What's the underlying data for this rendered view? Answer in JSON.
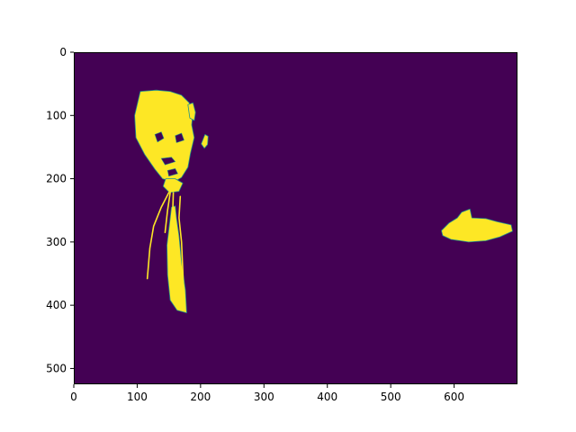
{
  "chart_data": {
    "type": "heatmap",
    "title": "",
    "xlabel": "",
    "ylabel": "",
    "xlim": [
      0,
      700
    ],
    "ylim": [
      525,
      0
    ],
    "x_ticks": [
      "0",
      "100",
      "200",
      "300",
      "400",
      "500",
      "600"
    ],
    "y_ticks": [
      "0",
      "100",
      "200",
      "300",
      "400",
      "500"
    ],
    "grid": false,
    "legend": "none",
    "value_range": [
      0,
      1
    ],
    "colormap": "viridis",
    "colors": {
      "background_value_0": "#440154",
      "foreground_value_1": "#fde725",
      "edge_value_mid": "#21918c"
    },
    "regions": [
      {
        "name": "head",
        "value": 1,
        "outline": [
          [
            105,
            62
          ],
          [
            130,
            60
          ],
          [
            152,
            62
          ],
          [
            170,
            68
          ],
          [
            182,
            80
          ],
          [
            188,
            95
          ],
          [
            186,
            115
          ],
          [
            190,
            135
          ],
          [
            184,
            160
          ],
          [
            180,
            182
          ],
          [
            170,
            198
          ],
          [
            158,
            205
          ],
          [
            140,
            200
          ],
          [
            128,
            185
          ],
          [
            112,
            162
          ],
          [
            98,
            135
          ],
          [
            96,
            100
          ]
        ]
      },
      {
        "name": "hair-right-fragment",
        "value": 1,
        "outline": [
          [
            180,
            83
          ],
          [
            188,
            80
          ],
          [
            192,
            95
          ],
          [
            190,
            108
          ],
          [
            183,
            104
          ]
        ]
      },
      {
        "name": "ear-fragment",
        "value": 1,
        "outline": [
          [
            207,
            130
          ],
          [
            212,
            133
          ],
          [
            211,
            146
          ],
          [
            206,
            152
          ],
          [
            201,
            145
          ]
        ]
      },
      {
        "name": "neck-knot",
        "value": 1,
        "outline": [
          [
            145,
            200
          ],
          [
            160,
            200
          ],
          [
            172,
            207
          ],
          [
            166,
            220
          ],
          [
            151,
            222
          ],
          [
            141,
            212
          ]
        ]
      },
      {
        "name": "tie",
        "value": 1,
        "outline": [
          [
            154,
            245
          ],
          [
            160,
            243
          ],
          [
            162,
            262
          ],
          [
            166,
            290
          ],
          [
            170,
            332
          ],
          [
            176,
            376
          ],
          [
            178,
            412
          ],
          [
            163,
            408
          ],
          [
            152,
            392
          ],
          [
            148,
            352
          ],
          [
            147,
            305
          ],
          [
            151,
            272
          ]
        ]
      },
      {
        "name": "hand",
        "value": 1,
        "outline": [
          [
            580,
            282
          ],
          [
            592,
            270
          ],
          [
            605,
            262
          ],
          [
            612,
            253
          ],
          [
            625,
            248
          ],
          [
            628,
            262
          ],
          [
            650,
            263
          ],
          [
            668,
            268
          ],
          [
            690,
            273
          ],
          [
            692,
            283
          ],
          [
            672,
            292
          ],
          [
            650,
            298
          ],
          [
            623,
            300
          ],
          [
            595,
            296
          ],
          [
            582,
            290
          ]
        ]
      }
    ],
    "strokes": [
      {
        "name": "collar-left-line",
        "value": 1,
        "points": [
          [
            150,
            222
          ],
          [
            138,
            245
          ],
          [
            126,
            275
          ],
          [
            120,
            310
          ],
          [
            116,
            358
          ]
        ]
      },
      {
        "name": "collar-right-line",
        "value": 1,
        "points": [
          [
            168,
            228
          ],
          [
            166,
            262
          ],
          [
            170,
            300
          ],
          [
            172,
            345
          ],
          [
            174,
            402
          ]
        ]
      },
      {
        "name": "tie-left-edge",
        "value": 1,
        "points": [
          [
            152,
            222
          ],
          [
            148,
            250
          ],
          [
            144,
            285
          ]
        ]
      },
      {
        "name": "shirt-center-line",
        "value": 1,
        "points": [
          [
            157,
            222
          ],
          [
            156,
            252
          ],
          [
            158,
            285
          ],
          [
            160,
            325
          ]
        ]
      }
    ],
    "holes": [
      {
        "name": "eye-left",
        "value": 0,
        "outline": [
          [
            128,
            130
          ],
          [
            138,
            126
          ],
          [
            142,
            136
          ],
          [
            132,
            142
          ]
        ]
      },
      {
        "name": "eye-right",
        "value": 0,
        "outline": [
          [
            160,
            132
          ],
          [
            170,
            128
          ],
          [
            174,
            139
          ],
          [
            162,
            143
          ]
        ]
      },
      {
        "name": "mouth",
        "value": 0,
        "outline": [
          [
            138,
            168
          ],
          [
            154,
            166
          ],
          [
            160,
            173
          ],
          [
            144,
            178
          ]
        ]
      },
      {
        "name": "chin-shadow",
        "value": 0,
        "outline": [
          [
            148,
            187
          ],
          [
            160,
            184
          ],
          [
            164,
            192
          ],
          [
            150,
            196
          ]
        ]
      }
    ]
  }
}
